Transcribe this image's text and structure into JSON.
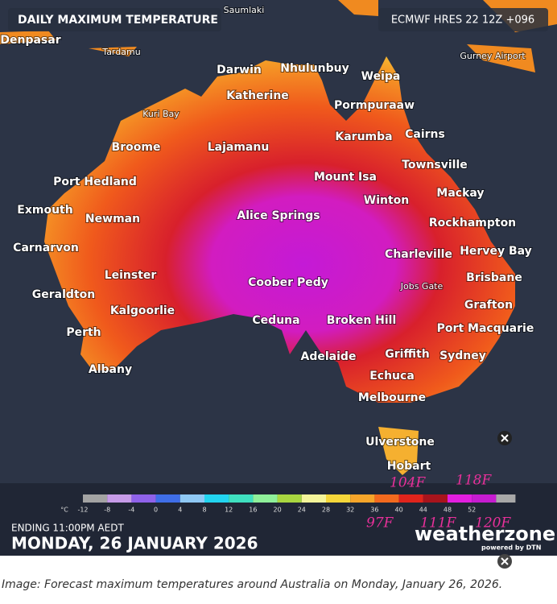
{
  "header": {
    "title": "DAILY MAXIMUM TEMPERATURE",
    "model": "ECMWF HRES 22 12Z +096"
  },
  "places": [
    "Saumlaki",
    "Denpasar",
    "Tardamu",
    "Gurney Airport",
    "Darwin",
    "Nhulunbuy",
    "Weipa",
    "Katherine",
    "Kuri Bay",
    "Pormpuraaw",
    "Broome",
    "Lajamanu",
    "Karumba",
    "Cairns",
    "Townsville",
    "Port Hedland",
    "Mount Isa",
    "Mackay",
    "Exmouth",
    "Newman",
    "Winton",
    "Alice Springs",
    "Rockhampton",
    "Carnarvon",
    "Charleville",
    "Hervey Bay",
    "Leinster",
    "Coober Pedy",
    "Jobs Gate",
    "Brisbane",
    "Geraldton",
    "Kalgoorlie",
    "Grafton",
    "Ceduna",
    "Broken Hill",
    "Perth",
    "Port Macquarie",
    "Adelaide",
    "Griffith",
    "Sydney",
    "Albany",
    "Echuca",
    "Melbourne",
    "Ulverstone",
    "Hobart"
  ],
  "legend": {
    "unit": "°C",
    "ticks": [
      -12,
      -8,
      -4,
      0,
      4,
      8,
      12,
      16,
      20,
      24,
      28,
      32,
      36,
      40,
      44,
      48,
      52
    ],
    "colors": [
      "#a3a3a3",
      "#c69be8",
      "#8f62ea",
      "#3f6ee8",
      "#8fc8f4",
      "#22d4f0",
      "#3fe0c0",
      "#8ff09a",
      "#a9d640",
      "#f4f49a",
      "#f5d63a",
      "#f6a52a",
      "#f36a1e",
      "#e0241c",
      "#a8141c",
      "#e21ee0",
      "#c61cd0",
      "#a8a8a8"
    ]
  },
  "annotations": [
    "104F",
    "118F",
    "97F",
    "111F",
    "120F"
  ],
  "footer": {
    "ending": "ENDING 11:00PM AEDT",
    "date": "MONDAY, 26 JANUARY 2026",
    "brand": "weatherzone",
    "powered": "powered by DTN"
  },
  "caption": "Image: Forecast maximum temperatures around Australia on Monday, January 26, 2026."
}
